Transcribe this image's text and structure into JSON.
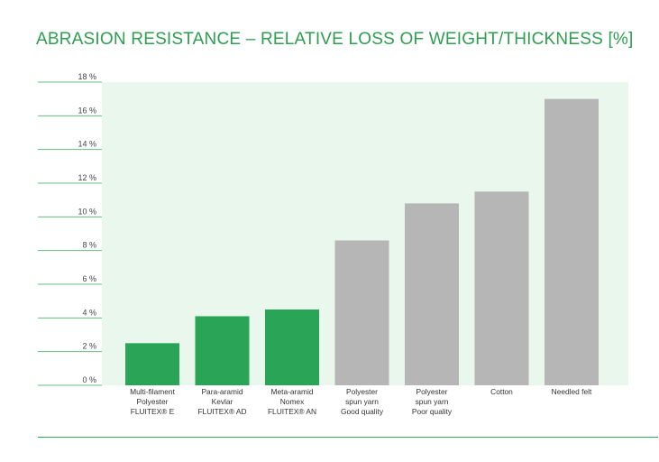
{
  "title": "ABRASION RESISTANCE – RELATIVE LOSS OF WEIGHT/THICKNESS [%]",
  "colors": {
    "accent": "#2e9e4f",
    "plot_background": "#eaf7ec",
    "highlight_bar": "#2aa558",
    "other_bar": "#b5b6b5",
    "gridline": "#66bb80"
  },
  "chart_data": {
    "type": "bar",
    "title": "ABRASION RESISTANCE – RELATIVE LOSS OF WEIGHT/THICKNESS [%]",
    "ylim": [
      0,
      18
    ],
    "yticks": [
      0,
      2,
      4,
      6,
      8,
      10,
      12,
      14,
      16,
      18
    ],
    "ytick_labels": [
      "0 %",
      "2 %",
      "4 %",
      "6 %",
      "8 %",
      "10 %",
      "12 %",
      "14 %",
      "16 %",
      "18 %"
    ],
    "grid": true,
    "categories": [
      [
        "Multi-filament",
        "Polyester",
        "FLUITEX® E"
      ],
      [
        "Para-aramid",
        "Kevlar",
        "FLUITEX® AD"
      ],
      [
        "Meta-aramid",
        "Nomex",
        "FLUITEX® AN"
      ],
      [
        "Polyester",
        "spun yarn",
        "Good quality"
      ],
      [
        "Polyester",
        "spun yarn",
        "Poor quality"
      ],
      [
        "Cotton"
      ],
      [
        "Needled felt"
      ]
    ],
    "values": [
      2.5,
      4.1,
      4.5,
      8.6,
      10.8,
      11.5,
      17.0
    ],
    "highlighted": [
      true,
      true,
      true,
      false,
      false,
      false,
      false
    ]
  }
}
